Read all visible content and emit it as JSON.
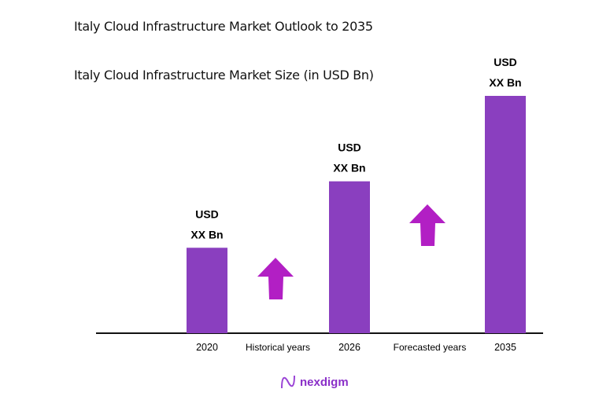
{
  "header": {
    "title": "Italy Cloud Infrastructure Market Outlook to 2035",
    "subtitle": "Italy Cloud Infrastructure Market Size (in USD Bn)"
  },
  "chart_data": {
    "type": "bar",
    "title": "Italy Cloud Infrastructure Market Size (in USD Bn)",
    "categories": [
      "2020",
      "2026",
      "2035"
    ],
    "values_relative": [
      0.36,
      0.64,
      1.0
    ],
    "data_labels": [
      [
        "USD",
        "XX Bn"
      ],
      [
        "USD",
        "XX Bn"
      ],
      [
        "USD",
        "XX Bn"
      ]
    ],
    "period_labels": [
      "Historical years",
      "Forecasted years"
    ],
    "bar_color": "#8a3fbf",
    "arrow_color": "#b21fc4",
    "grid": false
  },
  "brand": {
    "name": "nexdigm",
    "color": "#8a2fc8"
  }
}
